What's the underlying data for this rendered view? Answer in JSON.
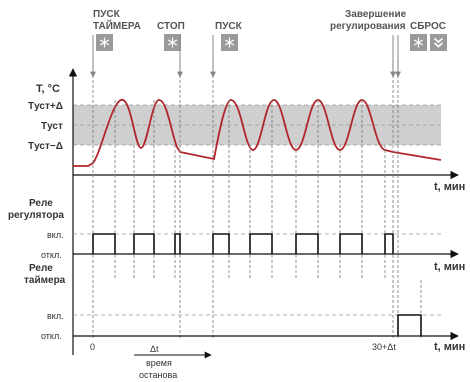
{
  "events": {
    "start_timer": [
      "ПУСК",
      "ТАЙМЕРА"
    ],
    "stop": "СТОП",
    "start": "ПУСК",
    "finish": [
      "Завершение",
      "регулирования"
    ],
    "reset": "СБРОС"
  },
  "temperature_chart": {
    "ylabel": "T, °C",
    "levels": [
      "Tуст+Δ",
      "Tуст",
      "Tуст−Δ"
    ],
    "xlabel": "t, мин"
  },
  "regulator_relay": {
    "title": [
      "Реле",
      "регулятора"
    ],
    "on_label": "вкл.",
    "off_label": "откл.",
    "xlabel": "t, мин"
  },
  "timer_relay": {
    "title": [
      "Реле",
      "таймера"
    ],
    "on_label": "вкл.",
    "off_label": "откл.",
    "xlabel": "t, мин"
  },
  "timeline": {
    "zero_label": "0",
    "end_label": "30+Δt",
    "pause": [
      "Δt",
      "время",
      "останова"
    ]
  },
  "colors": {
    "band": "#cfcfcf",
    "curve": "#b1262d",
    "icon_bg": "#9a9a9a",
    "text": "#333333"
  },
  "icons": {
    "start_timer": "snowflake-button-icon",
    "stop": "snowflake-button-icon",
    "start": "snowflake-button-icon",
    "reset_a": "snowflake-button-icon",
    "reset_b": "chevron-down-button-icon"
  }
}
